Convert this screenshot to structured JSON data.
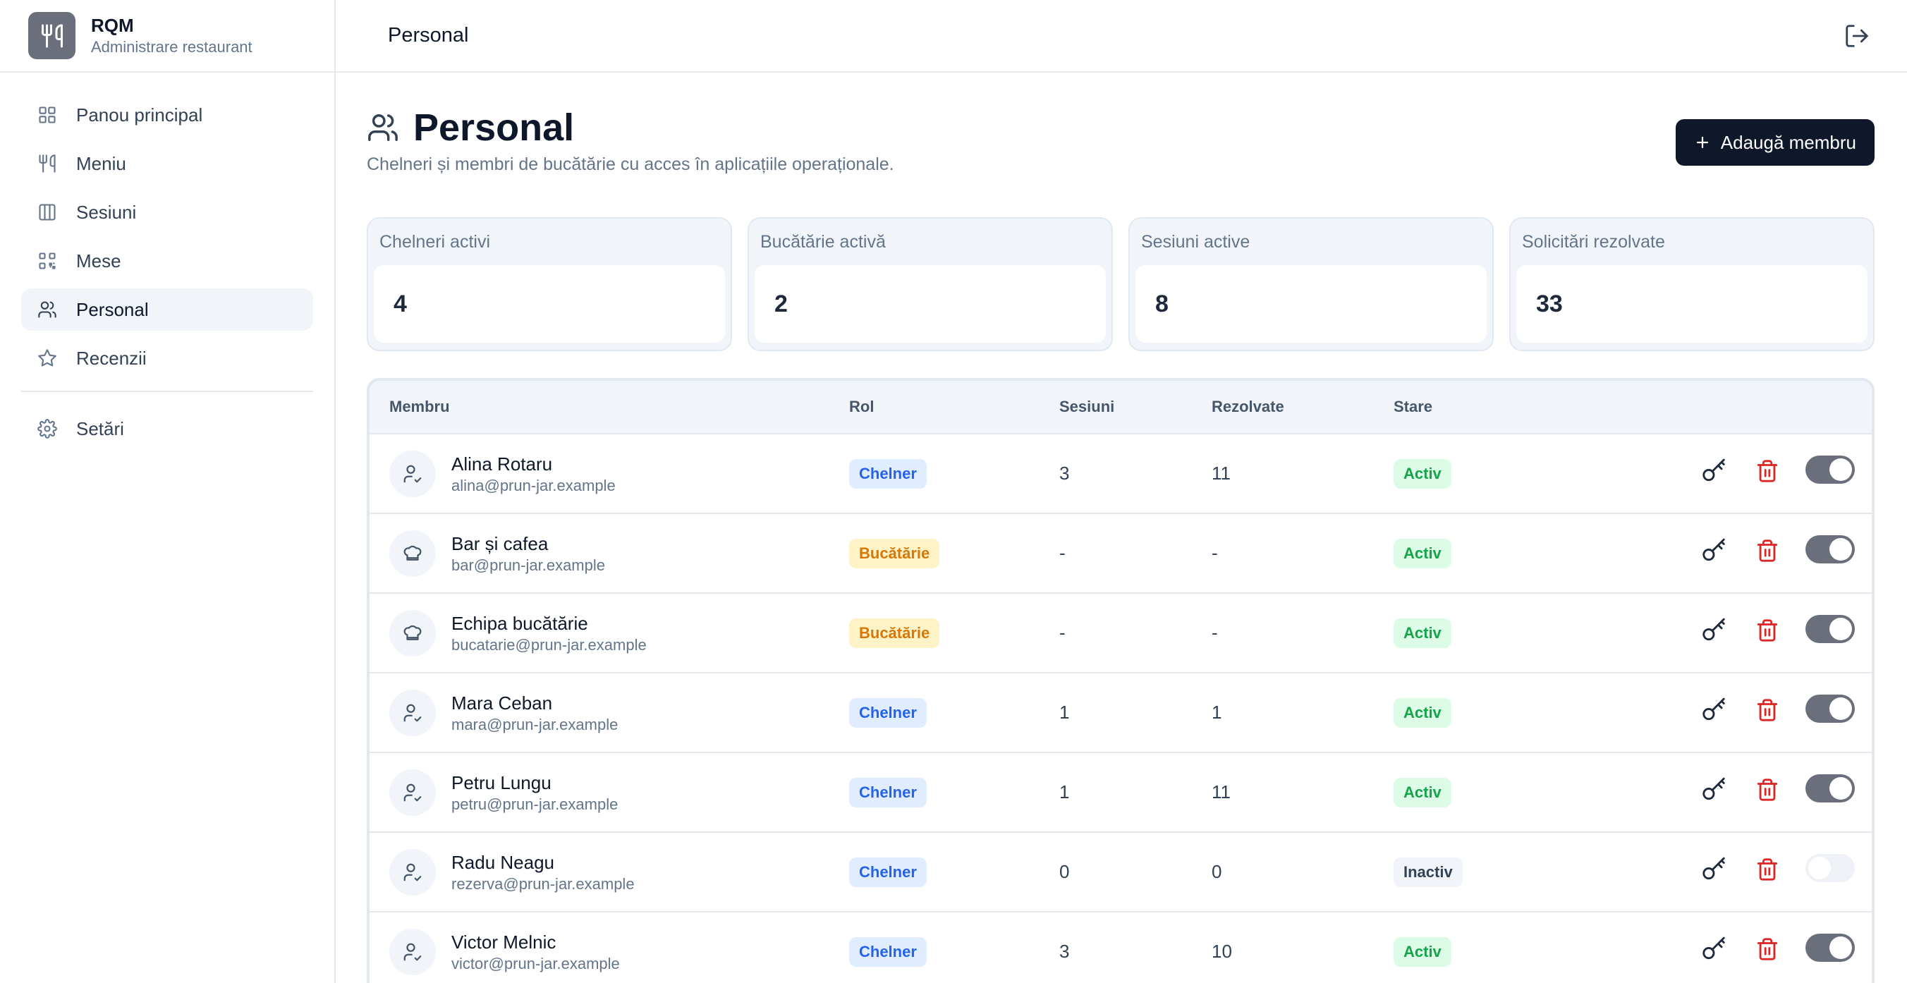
{
  "brand": {
    "name": "RQM",
    "subtitle": "Administrare restaurant"
  },
  "sidebar": {
    "items": [
      {
        "label": "Panou principal",
        "icon": "grid-icon"
      },
      {
        "label": "Meniu",
        "icon": "utensils-icon"
      },
      {
        "label": "Sesiuni",
        "icon": "columns-icon"
      },
      {
        "label": "Mese",
        "icon": "qr-code-icon"
      },
      {
        "label": "Personal",
        "icon": "users-icon",
        "active": true
      },
      {
        "label": "Recenzii",
        "icon": "star-icon"
      }
    ],
    "settings": {
      "label": "Setări",
      "icon": "gear-icon"
    }
  },
  "topbar": {
    "title": "Personal"
  },
  "page": {
    "title": "Personal",
    "description": "Chelneri și membri de bucătărie cu acces în aplicațiile operaționale.",
    "add_button": "Adaugă membru"
  },
  "stats": [
    {
      "label": "Chelneri activi",
      "value": "4"
    },
    {
      "label": "Bucătărie activă",
      "value": "2"
    },
    {
      "label": "Sesiuni active",
      "value": "8"
    },
    {
      "label": "Solicitări rezolvate",
      "value": "33"
    }
  ],
  "table": {
    "headers": {
      "member": "Membru",
      "role": "Rol",
      "sessions": "Sesiuni",
      "resolved": "Rezolvate",
      "state": "Stare"
    },
    "rows": [
      {
        "name": "Alina Rotaru",
        "email": "alina@prun-jar.example",
        "role": "Chelner",
        "sessions": "3",
        "resolved": "11",
        "state": "Activ",
        "enabled": true
      },
      {
        "name": "Bar și cafea",
        "email": "bar@prun-jar.example",
        "role": "Bucătărie",
        "sessions": "-",
        "resolved": "-",
        "state": "Activ",
        "enabled": true
      },
      {
        "name": "Echipa bucătărie",
        "email": "bucatarie@prun-jar.example",
        "role": "Bucătărie",
        "sessions": "-",
        "resolved": "-",
        "state": "Activ",
        "enabled": true
      },
      {
        "name": "Mara Ceban",
        "email": "mara@prun-jar.example",
        "role": "Chelner",
        "sessions": "1",
        "resolved": "1",
        "state": "Activ",
        "enabled": true
      },
      {
        "name": "Petru Lungu",
        "email": "petru@prun-jar.example",
        "role": "Chelner",
        "sessions": "1",
        "resolved": "11",
        "state": "Activ",
        "enabled": true
      },
      {
        "name": "Radu Neagu",
        "email": "rezerva@prun-jar.example",
        "role": "Chelner",
        "sessions": "0",
        "resolved": "0",
        "state": "Inactiv",
        "enabled": false
      },
      {
        "name": "Victor Melnic",
        "email": "victor@prun-jar.example",
        "role": "Chelner",
        "sessions": "3",
        "resolved": "10",
        "state": "Activ",
        "enabled": true
      }
    ]
  },
  "colors": {
    "primary": "#0f172a",
    "danger": "#dc2626",
    "chelner": "#2563eb",
    "bucatarie": "#d97706",
    "activ": "#16a34a"
  }
}
